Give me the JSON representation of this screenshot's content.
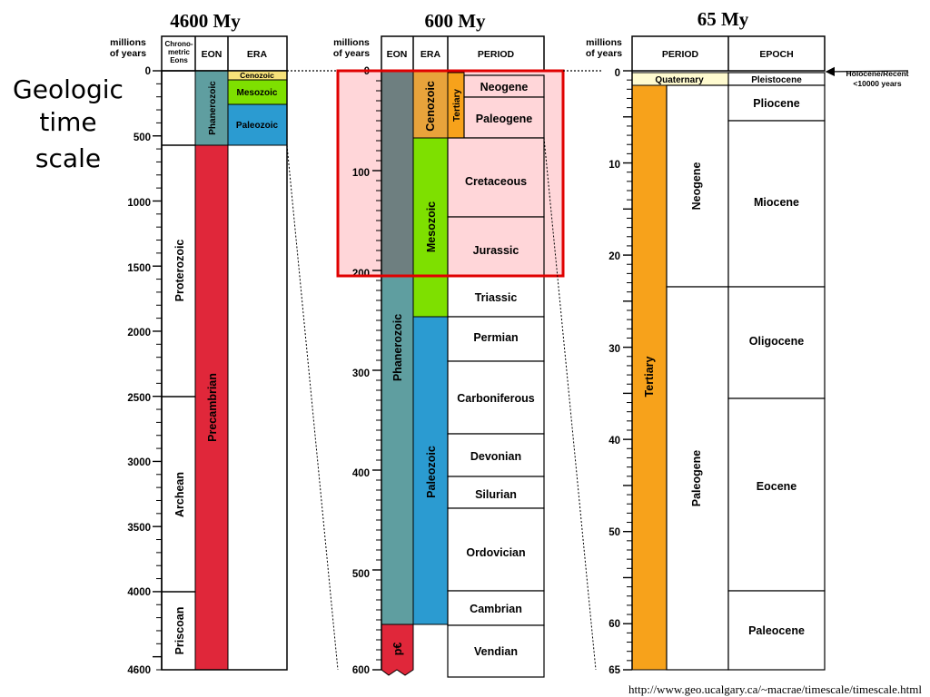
{
  "title": [
    "Geologic",
    "time",
    "scale"
  ],
  "source_url": "http://www.geo.ucalgary.ca/~macrae/timescale/timescale.html",
  "colors": {
    "phanerozoic": "#5f9ea0",
    "eon_grey": "#6e7f80",
    "precambrian": "#e0273a",
    "cenozoic": "#e8a33b",
    "mesozoic": "#7ee000",
    "paleozoic": "#2b9bd1",
    "tertiary": "#f7a21b",
    "quaternary": "#fffbd0",
    "cenozoic_light": "#f7e27a",
    "highlight_fill": "#ffd6d9",
    "highlight_border": "#e00000"
  },
  "panel1": {
    "header": "4600 My",
    "col_years": [
      "millions",
      "of years"
    ],
    "col_chrono": [
      "Chrono-",
      "metric",
      "Eons"
    ],
    "col_eon": "EON",
    "col_era": "ERA",
    "ticks": [
      "0",
      "500",
      "1000",
      "1500",
      "2000",
      "2500",
      "3000",
      "3500",
      "4000",
      "4600"
    ],
    "chrono_eons": [
      "Proterozoic",
      "Archean",
      "Priscoan"
    ],
    "eons": [
      "Phanerozoic",
      "Precambrian"
    ],
    "eras": [
      "Cenozoic",
      "Mesozoic",
      "Paleozoic"
    ]
  },
  "panel2": {
    "header": "600 My",
    "col_years": [
      "millions",
      "of years"
    ],
    "col_eon": "EON",
    "col_era": "ERA",
    "col_period": "PERIOD",
    "ticks": [
      "0",
      "100",
      "200",
      "300",
      "400",
      "500",
      "600"
    ],
    "eons": [
      "Phanerozoic",
      "p€"
    ],
    "eras": [
      "Cenozoic",
      "Mesozoic",
      "Paleozoic"
    ],
    "subperiod": "Tertiary",
    "periods": [
      "Neogene",
      "Paleogene",
      "Cretaceous",
      "Jurassic",
      "Triassic",
      "Permian",
      "Carboniferous",
      "Devonian",
      "Silurian",
      "Ordovician",
      "Cambrian",
      "Vendian"
    ]
  },
  "panel3": {
    "header": "65 My",
    "col_years": [
      "millions",
      "of years"
    ],
    "col_period": "PERIOD",
    "col_epoch": "EPOCH",
    "ticks": [
      "0",
      "10",
      "20",
      "30",
      "40",
      "50",
      "60",
      "65"
    ],
    "periods": [
      "Quaternary",
      "Tertiary"
    ],
    "subperiods": [
      "Neogene",
      "Paleogene"
    ],
    "epochs": [
      "Pleistocene",
      "Pliocene",
      "Miocene",
      "Oligocene",
      "Eocene",
      "Paleocene"
    ],
    "holocene_note": [
      "Holocene/Recent",
      "<10000 years"
    ]
  }
}
